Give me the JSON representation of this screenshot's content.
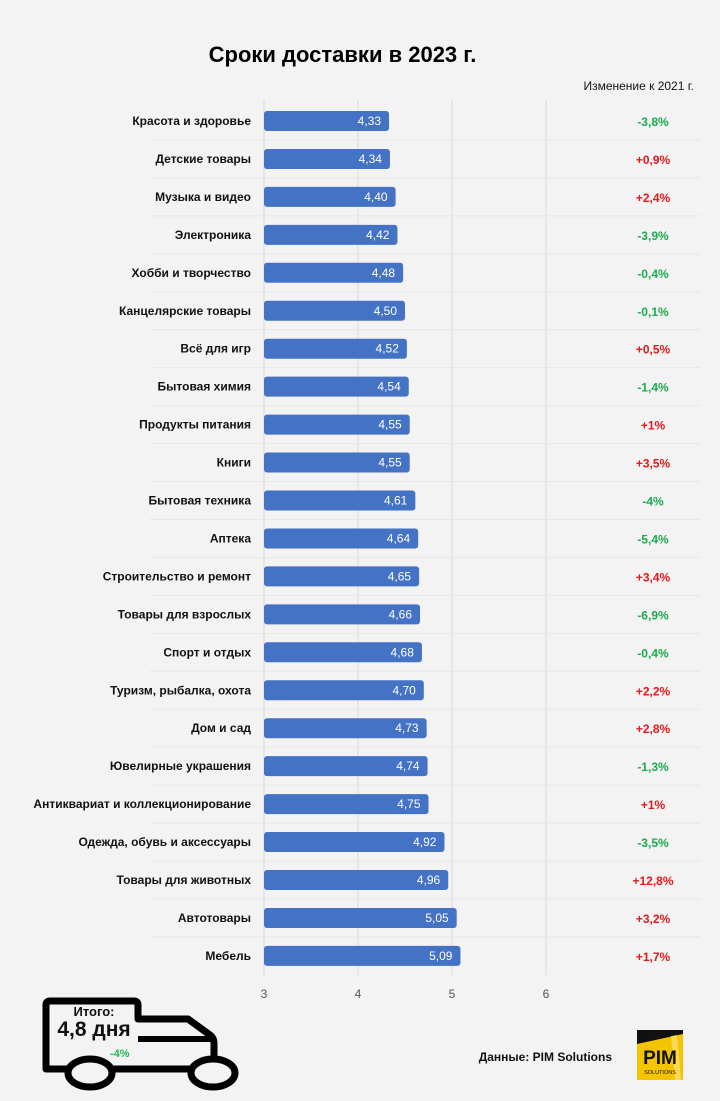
{
  "title": "Сроки доставки в 2023 г.",
  "change_header": "Изменение к 2021 г.",
  "colors": {
    "bar": "#4472c4",
    "positive_change": "#e31a1c",
    "negative_change": "#1aab4e",
    "grid": "#d9d9d9",
    "logo_yellow": "#f5c400"
  },
  "chart_data": {
    "type": "bar",
    "orientation": "horizontal",
    "title": "Сроки доставки в 2023 г.",
    "xlabel": "",
    "ylabel": "",
    "xlim": [
      3,
      6.8
    ],
    "xticks": [
      "3",
      "4",
      "5",
      "6"
    ],
    "grid": true,
    "categories": [
      "Красота и здоровье",
      "Детские товары",
      "Музыка и видео",
      "Электроника",
      "Хобби и творчество",
      "Канцелярские товары",
      "Всё для игр",
      "Бытовая химия",
      "Продукты питания",
      "Книги",
      "Бытовая техника",
      "Аптека",
      "Строительство и ремонт",
      "Товары для взрослых",
      "Спорт и отдых",
      "Туризм, рыбалка, охота",
      "Дом и сад",
      "Ювелирные украшения",
      "Антиквариат и коллекционирование",
      "Одежда, обувь и аксессуары",
      "Товары для животных",
      "Автотовары",
      "Мебель"
    ],
    "values": [
      4.33,
      4.34,
      4.4,
      4.42,
      4.48,
      4.5,
      4.52,
      4.54,
      4.55,
      4.55,
      4.61,
      4.64,
      4.65,
      4.66,
      4.68,
      4.7,
      4.73,
      4.74,
      4.75,
      4.92,
      4.96,
      5.05,
      5.09
    ],
    "value_labels": [
      "4,33",
      "4,34",
      "4,40",
      "4,42",
      "4,48",
      "4,50",
      "4,52",
      "4,54",
      "4,55",
      "4,55",
      "4,61",
      "4,64",
      "4,65",
      "4,66",
      "4,68",
      "4,70",
      "4,73",
      "4,74",
      "4,75",
      "4,92",
      "4,96",
      "5,05",
      "5,09"
    ],
    "changes": [
      "-3,8%",
      "+0,9%",
      "+2,4%",
      "-3,9%",
      "-0,4%",
      "-0,1%",
      "+0,5%",
      "-1,4%",
      "+1%",
      "+3,5%",
      "-4%",
      "-5,4%",
      "+3,4%",
      "-6,9%",
      "-0,4%",
      "+2,2%",
      "+2,8%",
      "-1,3%",
      "+1%",
      "-3,5%",
      "+12,8%",
      "+3,2%",
      "+1,7%"
    ]
  },
  "total": {
    "label": "Итого:",
    "value": "4,8 дня",
    "change": "-4%"
  },
  "source": "Данные: PIM Solutions",
  "logo": {
    "text": "PIM",
    "subtext": "SOLUTIONS"
  }
}
